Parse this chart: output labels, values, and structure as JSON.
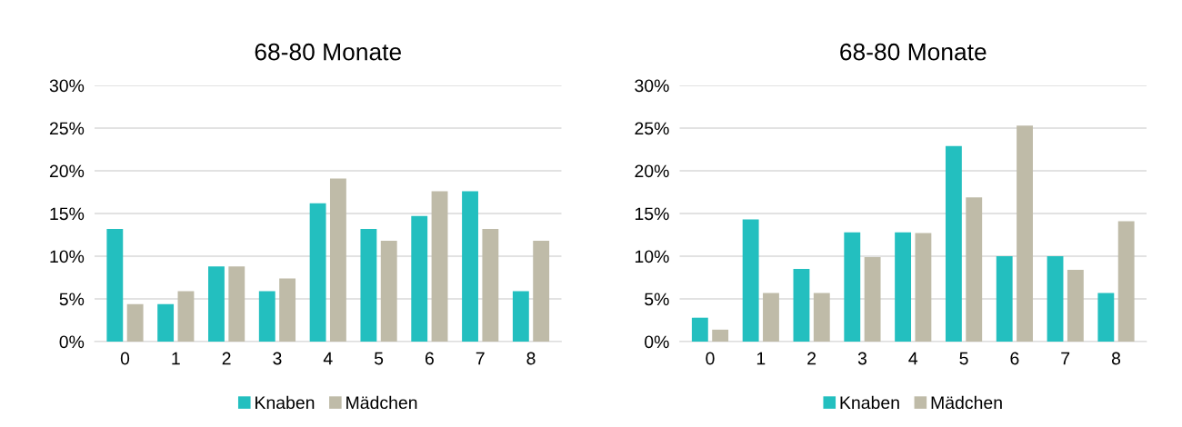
{
  "chart_data": [
    {
      "type": "bar",
      "title": "68-80 Monate",
      "categories": [
        "0",
        "1",
        "2",
        "3",
        "4",
        "5",
        "6",
        "7",
        "8"
      ],
      "series": [
        {
          "name": "Knaben",
          "color": "#23bfbf",
          "values": [
            13.2,
            4.4,
            8.8,
            5.9,
            16.2,
            13.2,
            14.7,
            17.6,
            5.9
          ]
        },
        {
          "name": "Mädchen",
          "color": "#bfbba8",
          "values": [
            4.4,
            5.9,
            8.8,
            7.4,
            19.1,
            11.8,
            17.6,
            13.2,
            11.8
          ]
        }
      ],
      "ylim": [
        0,
        30
      ],
      "yticks": [
        {
          "value": 0,
          "label": "0%"
        },
        {
          "value": 5,
          "label": "5%"
        },
        {
          "value": 10,
          "label": "10%"
        },
        {
          "value": 15,
          "label": "15%"
        },
        {
          "value": 20,
          "label": "20%"
        },
        {
          "value": 25,
          "label": "25%"
        },
        {
          "value": 30,
          "label": "30%"
        }
      ],
      "grid": "y",
      "legend": "bottom"
    },
    {
      "type": "bar",
      "title": "68-80 Monate",
      "categories": [
        "0",
        "1",
        "2",
        "3",
        "4",
        "5",
        "6",
        "7",
        "8"
      ],
      "series": [
        {
          "name": "Knaben",
          "color": "#23bfbf",
          "values": [
            2.8,
            14.3,
            8.5,
            12.8,
            12.8,
            22.9,
            10.0,
            10.0,
            5.7
          ]
        },
        {
          "name": "Mädchen",
          "color": "#bfbba8",
          "values": [
            1.4,
            5.7,
            5.7,
            9.9,
            12.7,
            16.9,
            25.3,
            8.4,
            14.1
          ]
        }
      ],
      "ylim": [
        0,
        30
      ],
      "yticks": [
        {
          "value": 0,
          "label": "0%"
        },
        {
          "value": 5,
          "label": "5%"
        },
        {
          "value": 10,
          "label": "10%"
        },
        {
          "value": 15,
          "label": "15%"
        },
        {
          "value": 20,
          "label": "20%"
        },
        {
          "value": 25,
          "label": "25%"
        },
        {
          "value": 30,
          "label": "30%"
        }
      ],
      "grid": "y",
      "legend": "bottom"
    }
  ]
}
